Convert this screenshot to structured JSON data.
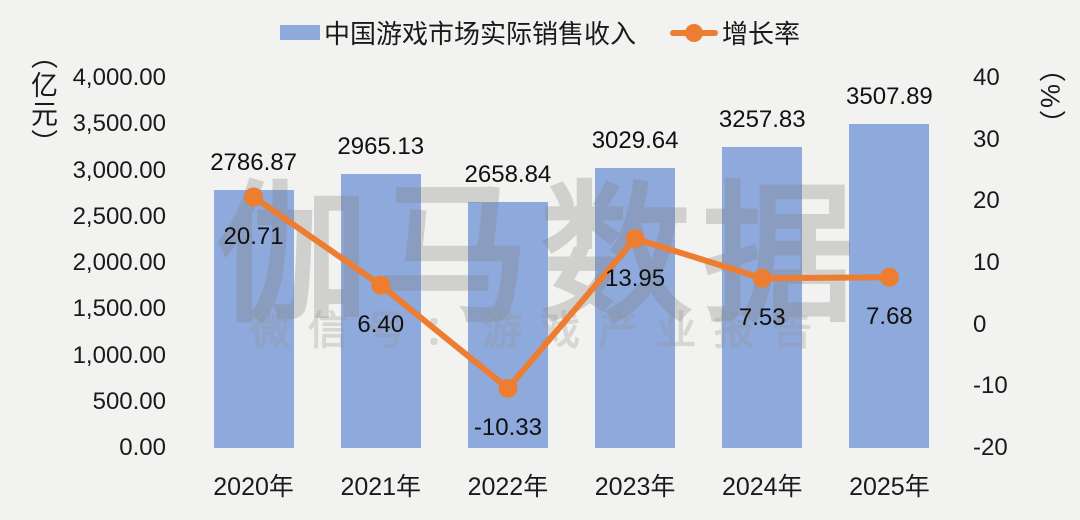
{
  "legend": [
    {
      "label": "中国游戏市场实际销售收入",
      "type": "bar"
    },
    {
      "label": "增长率",
      "type": "line"
    }
  ],
  "watermark": {
    "title": "伽马数据",
    "subtitle": "微信号：游戏产业报告"
  },
  "colors": {
    "background": "#F2F2F1",
    "bar": "#8EA9DB",
    "line": "#ED7D31",
    "label": "#111111"
  },
  "chart_data": {
    "type": "bar",
    "subtype": "bar-line-combo",
    "categories": [
      "2020年",
      "2021年",
      "2022年",
      "2023年",
      "2024年",
      "2025年"
    ],
    "series": [
      {
        "name": "中国游戏市场实际销售收入",
        "type": "bar",
        "axis": "left",
        "unit": "亿元",
        "values": [
          2786.87,
          2965.13,
          2658.84,
          3029.64,
          3257.83,
          3507.89
        ],
        "labels": [
          "2786.87",
          "2965.13",
          "2658.84",
          "3029.64",
          "3257.83",
          "3507.89"
        ]
      },
      {
        "name": "增长率",
        "type": "line",
        "axis": "right",
        "unit": "%",
        "values": [
          20.71,
          6.4,
          -10.33,
          13.95,
          7.53,
          7.68
        ],
        "labels": [
          "20.71",
          "6.40",
          "-10.33",
          "13.95",
          "7.53",
          "7.68"
        ]
      }
    ],
    "ylabel_left": "（亿元）",
    "ylabel_right": "（%）",
    "left_axis": {
      "min": 0,
      "max": 4000,
      "step": 500,
      "ticks": [
        "4,000.00",
        "3,500.00",
        "3,000.00",
        "2,500.00",
        "2,000.00",
        "1,500.00",
        "1,000.00",
        "500.00",
        "0.00"
      ]
    },
    "right_axis": {
      "min": -20,
      "max": 40,
      "step": 10,
      "ticks": [
        "40",
        "30",
        "20",
        "10",
        "0",
        "-10",
        "-20"
      ]
    },
    "grid": false,
    "legend_position": "top",
    "title": ""
  }
}
